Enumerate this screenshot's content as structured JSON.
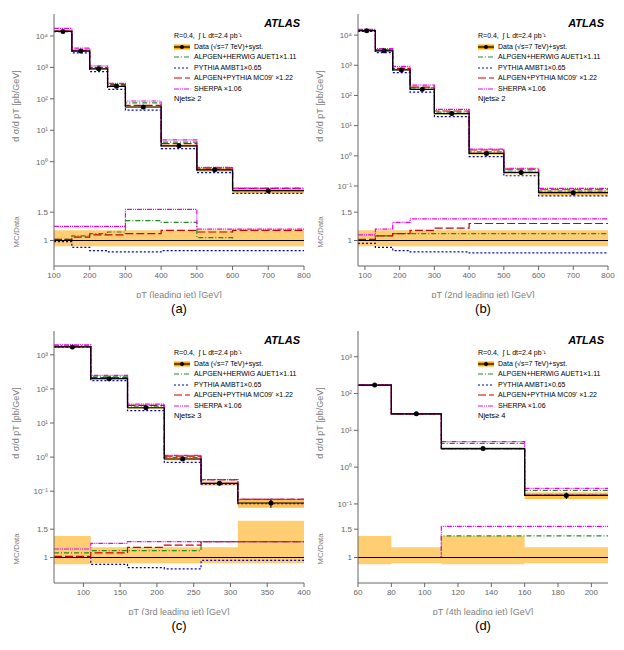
{
  "chart_data": [
    {
      "type": "line",
      "log": "y",
      "legend": "upper right",
      "ylabel": "d σ/d pT [pb/GeV]",
      "tick_labels": "y",
      "annotations": [
        "ATLAS",
        "R=0.4,  ∫ L dt=2.4 pb⁻¹",
        "Njets≥ 2"
      ],
      "xlim": [
        100,
        800
      ],
      "ylim": [
        0.07,
        50000
      ],
      "yticks": [
        {
          "value": 0.1,
          "label": "10⁻¹"
        },
        {
          "value": 1,
          "label": "10⁰"
        },
        {
          "value": 10,
          "label": "10¹"
        },
        {
          "value": 100,
          "label": "10²"
        },
        {
          "value": 1000,
          "label": "10³"
        },
        {
          "value": 10000,
          "label": "10⁴"
        }
      ],
      "bins": [
        100,
        150,
        200,
        250,
        300,
        400,
        500,
        600,
        800
      ],
      "series": [
        {
          "type": "band",
          "color": "#FFA500",
          "low": [
            13440,
            3168,
            864,
            237.5,
            51.7,
            2.912,
            0.4785,
            0.0984
          ],
          "high": [
            14560,
            3432,
            936,
            262.5,
            58.3,
            3.488,
            0.6215,
            0.1416
          ]
        },
        {
          "name": "Data (√s=7 TeV)+syst.",
          "color": "#000000",
          "line_style": "solid",
          "marker": "o",
          "values": [
            14000,
            3300,
            900,
            250,
            55,
            3.2,
            0.55,
            0.12
          ],
          "errors": [
            560,
            132,
            36,
            12.5,
            3.3,
            0.288,
            0.0715,
            0.0216
          ]
        },
        {
          "name": "ALPGEN+HERWIG AUET1×1.11",
          "color": "#228B22",
          "line_style": "dashdot",
          "values": [
            14280,
            3564,
            1008,
            287.5,
            74.25,
            4.224,
            0.5775,
            0.12
          ]
        },
        {
          "name": "PYTHIA AMBT1×0.65",
          "color": "#0000CD",
          "line_style": "dotted",
          "values": [
            13720,
            2904,
            738,
            200,
            44,
            2.624,
            0.451,
            0.0984
          ]
        },
        {
          "name": "ALPGEN+PYTHIA MC09' ×1.22",
          "color": "#CC0000",
          "line_style": "dashed",
          "values": [
            14280,
            3498,
            990,
            275,
            61.6,
            3.776,
            0.6325,
            0.1416
          ]
        },
        {
          "name": "SHERPA ×1.06",
          "color": "#EE00EE",
          "line_style": "dashdotdot",
          "values": [
            17500,
            4125,
            1125,
            312.5,
            85.25,
            4.96,
            0.66,
            0.144
          ]
        }
      ]
    },
    {
      "type": "line",
      "title": "(a)",
      "xlabel": "pT (leading jet) [GeV]",
      "ylabel": "MC/Data",
      "xlim": [
        100,
        800
      ],
      "xticks": [
        100,
        200,
        300,
        400,
        500,
        600,
        700,
        800
      ],
      "ylim": [
        0.55,
        1.75
      ],
      "yticks": [
        1,
        1.5
      ],
      "hline": 1,
      "bins": [
        100,
        150,
        200,
        250,
        300,
        400,
        500,
        600,
        800
      ],
      "series": [
        {
          "type": "band",
          "color": "#FFA500",
          "low": [
            0.9,
            0.9,
            0.9,
            0.9,
            0.9,
            0.9,
            0.9,
            0.9
          ],
          "high": [
            1.18,
            1.18,
            1.18,
            1.18,
            1.18,
            1.18,
            1.18,
            1.18
          ]
        },
        {
          "color": "#228B22",
          "line_style": "dashdot",
          "values": [
            1.02,
            1.08,
            1.12,
            1.15,
            1.35,
            1.32,
            1.05,
            1.0
          ]
        },
        {
          "color": "#0000CD",
          "line_style": "dotted",
          "values": [
            0.98,
            0.88,
            0.82,
            0.8,
            0.8,
            0.82,
            0.82,
            0.82
          ]
        },
        {
          "color": "#CC0000",
          "line_style": "dashed",
          "values": [
            1.02,
            1.06,
            1.1,
            1.1,
            1.12,
            1.18,
            1.15,
            1.18
          ]
        },
        {
          "color": "#EE00EE",
          "line_style": "dashdotdot",
          "values": [
            1.25,
            1.25,
            1.25,
            1.25,
            1.55,
            1.55,
            1.2,
            1.2
          ]
        }
      ]
    },
    {
      "type": "line",
      "log": "y",
      "legend": "upper right",
      "ylabel": "d σ/d pT [pb/GeV]",
      "tick_labels": "y",
      "annotations": [
        "ATLAS",
        "R=0.4,  ∫ L dt=2.4 pb⁻¹",
        "Njets≥ 2"
      ],
      "xlim": [
        80,
        800
      ],
      "ylim": [
        0.04,
        50000
      ],
      "yticks": [
        {
          "value": 0.1,
          "label": "10⁻¹"
        },
        {
          "value": 1,
          "label": "10⁰"
        },
        {
          "value": 10,
          "label": "10¹"
        },
        {
          "value": 100,
          "label": "10²"
        },
        {
          "value": 1000,
          "label": "10³"
        },
        {
          "value": 10000,
          "label": "10⁴"
        }
      ],
      "bins": [
        80,
        130,
        180,
        230,
        300,
        400,
        500,
        600,
        800
      ],
      "series": [
        {
          "type": "band",
          "color": "#FFA500",
          "low": [
            13440,
            2880,
            672,
            152,
            23.5,
            1.092,
            0.2436,
            0.0492
          ],
          "high": [
            14560,
            3120,
            728,
            168,
            26.5,
            1.308,
            0.3164,
            0.0708
          ]
        },
        {
          "name": "Data (√s=7 TeV)+syst.",
          "color": "#000000",
          "line_style": "solid",
          "marker": "o",
          "values": [
            14000,
            3000,
            700,
            160,
            25,
            1.2,
            0.28,
            0.06
          ],
          "errors": [
            560,
            120,
            28,
            8,
            1.5,
            0.108,
            0.0364,
            0.0108
          ]
        },
        {
          "name": "ALPGEN+HERWIG AUET1×1.11",
          "color": "#228B22",
          "line_style": "dashdot",
          "values": [
            14000,
            3240,
            784,
            179.2,
            28,
            1.344,
            0.3136,
            0.0672
          ]
        },
        {
          "name": "PYTHIA AMBT1×0.65",
          "color": "#0000CD",
          "line_style": "dotted",
          "values": [
            13300,
            2640,
            574,
            128,
            20,
            0.936,
            0.2184,
            0.0468
          ]
        },
        {
          "name": "ALPGEN+PYTHIA MC09' ×1.22",
          "color": "#CC0000",
          "line_style": "dashed",
          "values": [
            14280,
            3240,
            784,
            188.8,
            30.5,
            1.56,
            0.364,
            0.078
          ]
        },
        {
          "name": "SHERPA ×1.06",
          "color": "#EE00EE",
          "line_style": "dashdotdot",
          "values": [
            15400,
            3600,
            924,
            220.8,
            34.5,
            1.656,
            0.3864,
            0.0828
          ]
        }
      ]
    },
    {
      "type": "line",
      "title": "(b)",
      "xlabel": "pT (2nd leading jet) [GeV]",
      "ylabel": "MC/Data",
      "xlim": [
        80,
        800
      ],
      "xticks": [
        100,
        200,
        300,
        400,
        500,
        600,
        700,
        800
      ],
      "ylim": [
        0.55,
        1.75
      ],
      "yticks": [
        1,
        1.5
      ],
      "hline": 1,
      "bins": [
        80,
        130,
        180,
        230,
        300,
        400,
        500,
        600,
        800
      ],
      "series": [
        {
          "type": "band",
          "color": "#FFA500",
          "low": [
            0.9,
            0.9,
            0.9,
            0.9,
            0.9,
            0.9,
            0.9,
            0.9
          ],
          "high": [
            1.18,
            1.18,
            1.18,
            1.18,
            1.18,
            1.18,
            1.18,
            1.18
          ]
        },
        {
          "color": "#228B22",
          "line_style": "dashdot",
          "values": [
            1.0,
            1.08,
            1.12,
            1.12,
            1.12,
            1.12,
            1.12,
            1.12
          ]
        },
        {
          "color": "#0000CD",
          "line_style": "dotted",
          "values": [
            0.95,
            0.88,
            0.82,
            0.8,
            0.8,
            0.78,
            0.78,
            0.78
          ]
        },
        {
          "color": "#CC0000",
          "line_style": "dashed",
          "values": [
            1.02,
            1.08,
            1.12,
            1.18,
            1.22,
            1.3,
            1.3,
            1.3
          ]
        },
        {
          "color": "#EE00EE",
          "line_style": "dashdotdot",
          "values": [
            1.1,
            1.2,
            1.32,
            1.38,
            1.38,
            1.38,
            1.38,
            1.38
          ]
        }
      ]
    },
    {
      "type": "line",
      "log": "y",
      "legend": "upper right",
      "ylabel": "d σ/d pT [pb/GeV]",
      "tick_labels": "y",
      "annotations": [
        "ATLAS",
        "R=0.4,  ∫ L dt=2.4 pb⁻¹",
        "Njets≥ 3"
      ],
      "xlim": [
        60,
        400
      ],
      "ylim": [
        0.02,
        5000
      ],
      "yticks": [
        {
          "value": 0.1,
          "label": "10⁻¹"
        },
        {
          "value": 1,
          "label": "10⁰"
        },
        {
          "value": 10,
          "label": "10¹"
        },
        {
          "value": 100,
          "label": "10²"
        },
        {
          "value": 1000,
          "label": "10³"
        }
      ],
      "bins": [
        60,
        110,
        160,
        210,
        260,
        310,
        400
      ],
      "series": [
        {
          "type": "band",
          "color": "#FFA500",
          "low": [
            1615,
            190,
            26.32,
            0.8096,
            0.1462,
            0.0324
          ],
          "high": [
            1785,
            210,
            29.68,
            0.9504,
            0.1938,
            0.0576
          ]
        },
        {
          "name": "Data (√s=7 TeV)+syst.",
          "color": "#000000",
          "line_style": "solid",
          "marker": "o",
          "values": [
            1700,
            200,
            28,
            0.88,
            0.17,
            0.045
          ],
          "errors": [
            85,
            10,
            1.68,
            0.0704,
            0.0238,
            0.0126
          ]
        },
        {
          "name": "ALPGEN+HERWIG AUET1×1.11",
          "color": "#228B22",
          "line_style": "dashdot",
          "values": [
            1836,
            224,
            31.36,
            0.9856,
            0.2176,
            0.0576
          ]
        },
        {
          "name": "PYTHIA AMBT1×0.65",
          "color": "#0000CD",
          "line_style": "dotted",
          "values": [
            1700,
            176,
            22.96,
            0.704,
            0.1615,
            0.04275
          ]
        },
        {
          "name": "ALPGEN+PYTHIA MC09' ×1.22",
          "color": "#CC0000",
          "line_style": "dashed",
          "values": [
            1734,
            216,
            33.04,
            1.0736,
            0.2176,
            0.0576
          ]
        },
        {
          "name": "SHERPA ×1.06",
          "color": "#EE00EE",
          "line_style": "dashdotdot",
          "values": [
            1955,
            250,
            35.84,
            1.1264,
            0.2176,
            0.0576
          ]
        }
      ]
    },
    {
      "type": "line",
      "title": "(c)",
      "xlabel": "pT (3rd leading jet) [GeV]",
      "ylabel": "MC/Data",
      "xlim": [
        60,
        400
      ],
      "xticks": [
        100,
        150,
        200,
        250,
        300,
        350,
        400
      ],
      "ylim": [
        0.55,
        1.75
      ],
      "yticks": [
        1,
        1.5
      ],
      "hline": 1,
      "bins": [
        60,
        110,
        160,
        210,
        260,
        310,
        400
      ],
      "series": [
        {
          "type": "band",
          "color": "#FFA500",
          "low": [
            0.88,
            0.9,
            0.9,
            0.9,
            0.9,
            0.9
          ],
          "high": [
            1.38,
            1.18,
            1.18,
            1.18,
            1.18,
            1.65
          ]
        },
        {
          "color": "#228B22",
          "line_style": "dashdot",
          "values": [
            1.08,
            1.12,
            1.12,
            1.12,
            1.28,
            1.28
          ]
        },
        {
          "color": "#0000CD",
          "line_style": "dotted",
          "values": [
            1.0,
            0.88,
            0.82,
            0.8,
            0.95,
            0.95
          ]
        },
        {
          "color": "#CC0000",
          "line_style": "dashed",
          "values": [
            1.02,
            1.08,
            1.18,
            1.22,
            1.28,
            1.28
          ]
        },
        {
          "color": "#EE00EE",
          "line_style": "dashdotdot",
          "values": [
            1.15,
            1.25,
            1.28,
            1.28,
            1.28,
            1.28
          ]
        }
      ]
    },
    {
      "type": "line",
      "log": "y",
      "legend": "upper right",
      "ylabel": "d σ/d pT [pb/GeV]",
      "tick_labels": "y",
      "annotations": [
        "ATLAS",
        "R=0.4,  ∫ L dt=2.4 pb⁻¹",
        "Njets≥ 4"
      ],
      "xlim": [
        60,
        210
      ],
      "ylim": [
        0.05,
        5000
      ],
      "yticks": [
        {
          "value": 0.1,
          "label": "10⁻¹"
        },
        {
          "value": 1,
          "label": "10⁰"
        },
        {
          "value": 10,
          "label": "10¹"
        },
        {
          "value": 100,
          "label": "10²"
        },
        {
          "value": 1000,
          "label": "10³"
        }
      ],
      "bins": [
        60,
        80,
        110,
        160,
        210
      ],
      "series": [
        {
          "type": "band",
          "color": "#FFA500",
          "low": [
            161.5,
            26.32,
            2.912,
            0.136
          ],
          "high": [
            178.5,
            29.68,
            3.488,
            0.204
          ]
        },
        {
          "name": "Data (√s=7 TeV)+syst.",
          "color": "#000000",
          "line_style": "solid",
          "marker": "o",
          "values": [
            170,
            28,
            3.2,
            0.17
          ],
          "errors": [
            8.5,
            1.68,
            0.288,
            0.034
          ]
        },
        {
          "name": "ALPGEN+HERWIG AUET1×1.11",
          "color": "#228B22",
          "line_style": "dashdot",
          "values": [
            170,
            28,
            4.416,
            0.2346
          ]
        },
        {
          "name": "PYTHIA AMBT1×0.65",
          "color": "#0000CD",
          "line_style": "dotted",
          "values": [
            170,
            28,
            3.2,
            0.17
          ]
        },
        {
          "name": "ALPGEN+PYTHIA MC09' ×1.22",
          "color": "#CC0000",
          "line_style": "dashed",
          "values": [
            170,
            28,
            3.2,
            0.17
          ]
        },
        {
          "name": "SHERPA ×1.06",
          "color": "#EE00EE",
          "line_style": "dashdotdot",
          "values": [
            170,
            28,
            4.96,
            0.2635
          ]
        }
      ]
    },
    {
      "type": "line",
      "title": "(d)",
      "xlabel": "pT (4th leading jet) [GeV]",
      "ylabel": "MC/Data",
      "xlim": [
        60,
        210
      ],
      "xticks": [
        60,
        80,
        100,
        120,
        140,
        160,
        180,
        200
      ],
      "ylim": [
        0.55,
        1.75
      ],
      "yticks": [
        1,
        1.5
      ],
      "hline": 1,
      "bins": [
        60,
        80,
        110,
        160,
        210
      ],
      "series": [
        {
          "type": "band",
          "color": "#FFA500",
          "low": [
            0.88,
            0.9,
            0.88,
            0.9
          ],
          "high": [
            1.38,
            1.18,
            1.38,
            1.18
          ]
        },
        {
          "color": "#228B22",
          "line_style": "dashdot",
          "values": [
            1.0,
            1.0,
            1.38,
            1.38
          ]
        },
        {
          "color": "#0000CD",
          "line_style": "dotted",
          "values": [
            1.0,
            1.0,
            1.0,
            1.0
          ]
        },
        {
          "color": "#CC0000",
          "line_style": "dashed",
          "values": [
            1.0,
            1.0,
            1.0,
            1.0
          ]
        },
        {
          "color": "#EE00EE",
          "line_style": "dashdotdot",
          "values": [
            1.0,
            1.0,
            1.55,
            1.55
          ]
        }
      ]
    }
  ]
}
